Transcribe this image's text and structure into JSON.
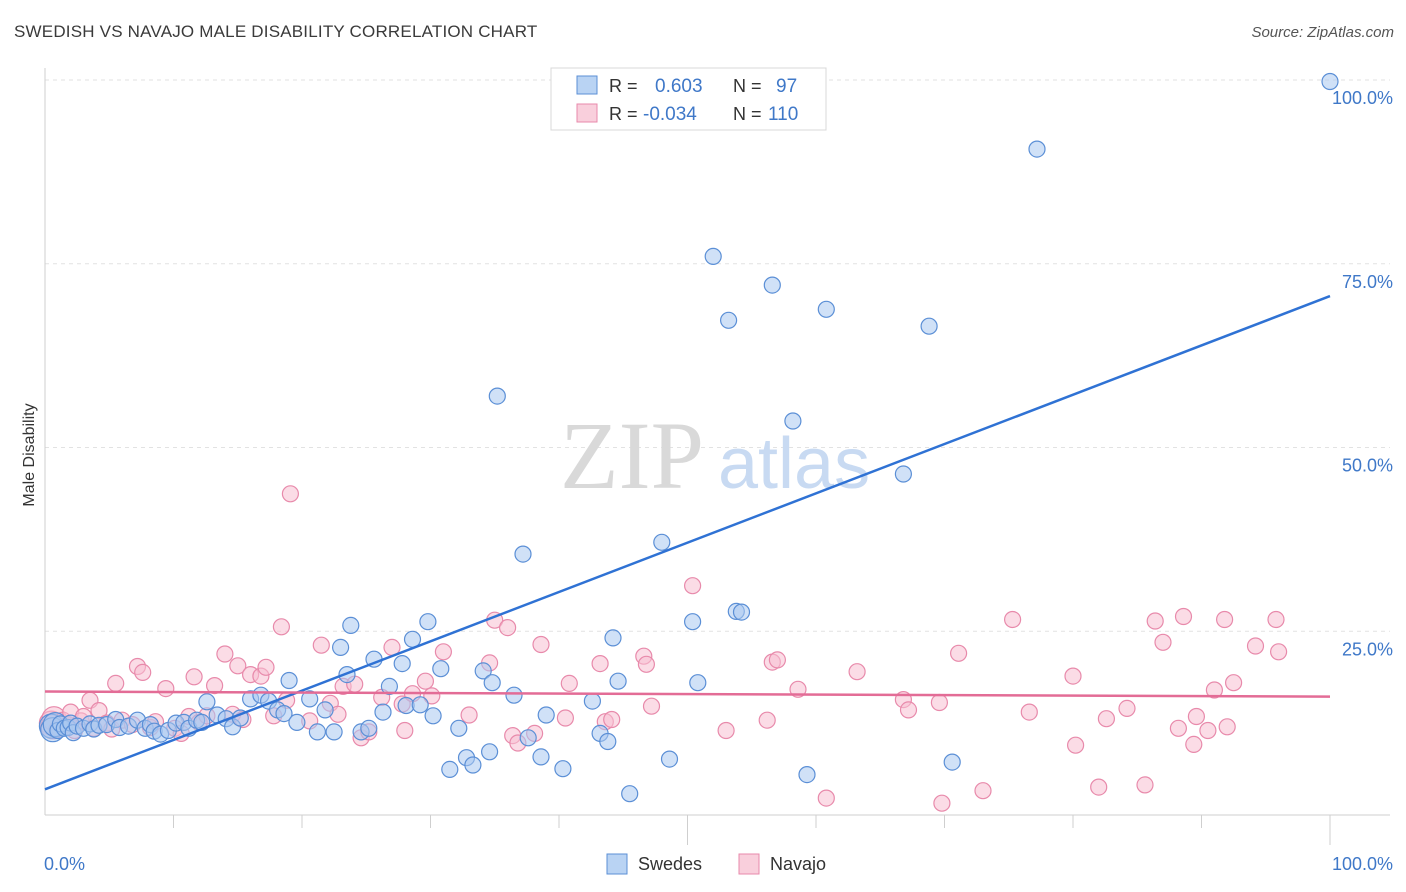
{
  "header": {
    "title": "SWEDISH VS NAVAJO MALE DISABILITY CORRELATION CHART",
    "source": "Source: ZipAtlas.com"
  },
  "watermark": {
    "zip": "ZIP",
    "atlas": "atlas"
  },
  "legend_stats": [
    {
      "r_label": "R =",
      "r_value": "0.603",
      "n_label": "N =",
      "n_value": "97"
    },
    {
      "r_label": "R =",
      "r_value": "-0.034",
      "n_label": "N =",
      "n_value": "110"
    }
  ],
  "colors": {
    "swedes_fill": "#a9c8f0",
    "swedes_stroke": "#5b8fd6",
    "swedes_line": "#2f72d4",
    "navajo_fill": "#f7bfd1",
    "navajo_stroke": "#e88aab",
    "navajo_line": "#e36c96",
    "value_text": "#3f78c8"
  },
  "chart_data": {
    "type": "scatter",
    "title": "SWEDISH VS NAVAJO MALE DISABILITY CORRELATION CHART",
    "xlabel": "",
    "ylabel": "Male Disability",
    "xlim": [
      0,
      100
    ],
    "ylim": [
      0,
      100
    ],
    "x_tick_labels": [
      "0.0%",
      "100.0%"
    ],
    "y_tick_labels": [
      "25.0%",
      "50.0%",
      "75.0%",
      "100.0%"
    ],
    "y_ticks": [
      25,
      50,
      75,
      100
    ],
    "grid": true,
    "legend_position": "bottom-center",
    "series": [
      {
        "name": "Swedes",
        "r": 0.603,
        "n": 97,
        "trend": {
          "x": [
            0,
            100
          ],
          "y": [
            3.5,
            70.6
          ]
        },
        "points": [
          [
            0.5,
            12.1
          ],
          [
            0.6,
            11.6
          ],
          [
            0.8,
            12.3
          ],
          [
            1.0,
            11.5
          ],
          [
            1.2,
            12.4
          ],
          [
            1.5,
            11.8
          ],
          [
            1.8,
            11.9
          ],
          [
            2.0,
            12.5
          ],
          [
            2.2,
            11.2
          ],
          [
            2.5,
            12.1
          ],
          [
            3.0,
            11.8
          ],
          [
            3.5,
            12.4
          ],
          [
            3.8,
            11.7
          ],
          [
            4.2,
            12.2
          ],
          [
            4.8,
            12.3
          ],
          [
            5.5,
            13.0
          ],
          [
            5.8,
            11.9
          ],
          [
            6.5,
            12.1
          ],
          [
            7.2,
            12.9
          ],
          [
            7.8,
            11.8
          ],
          [
            8.2,
            12.3
          ],
          [
            8.5,
            11.4
          ],
          [
            9.0,
            11.0
          ],
          [
            9.6,
            11.5
          ],
          [
            10.2,
            12.5
          ],
          [
            10.8,
            12.6
          ],
          [
            11.2,
            11.8
          ],
          [
            11.8,
            12.9
          ],
          [
            12.2,
            12.6
          ],
          [
            12.6,
            15.4
          ],
          [
            13.4,
            13.6
          ],
          [
            14.1,
            13.1
          ],
          [
            14.6,
            12.0
          ],
          [
            15.2,
            13.2
          ],
          [
            16.0,
            15.8
          ],
          [
            16.8,
            16.3
          ],
          [
            17.4,
            15.5
          ],
          [
            18.1,
            14.3
          ],
          [
            18.6,
            13.8
          ],
          [
            19.0,
            18.3
          ],
          [
            19.6,
            12.6
          ],
          [
            20.6,
            15.8
          ],
          [
            21.2,
            11.3
          ],
          [
            21.8,
            14.3
          ],
          [
            22.5,
            11.3
          ],
          [
            23.0,
            22.8
          ],
          [
            23.5,
            19.1
          ],
          [
            23.8,
            25.8
          ],
          [
            24.6,
            11.3
          ],
          [
            25.2,
            11.8
          ],
          [
            25.6,
            21.2
          ],
          [
            26.3,
            14.0
          ],
          [
            26.8,
            17.5
          ],
          [
            27.8,
            20.6
          ],
          [
            28.1,
            14.9
          ],
          [
            28.6,
            23.9
          ],
          [
            29.2,
            15.0
          ],
          [
            29.8,
            26.3
          ],
          [
            30.2,
            13.5
          ],
          [
            30.8,
            19.9
          ],
          [
            31.5,
            6.2
          ],
          [
            32.2,
            11.8
          ],
          [
            32.8,
            7.8
          ],
          [
            33.3,
            6.8
          ],
          [
            34.1,
            19.6
          ],
          [
            34.6,
            8.6
          ],
          [
            34.8,
            18.0
          ],
          [
            35.2,
            57.0
          ],
          [
            36.5,
            16.3
          ],
          [
            37.2,
            35.5
          ],
          [
            37.6,
            10.5
          ],
          [
            38.6,
            7.9
          ],
          [
            39.0,
            13.6
          ],
          [
            40.3,
            6.3
          ],
          [
            42.6,
            15.5
          ],
          [
            43.2,
            11.1
          ],
          [
            43.8,
            10.0
          ],
          [
            44.2,
            24.1
          ],
          [
            44.6,
            18.2
          ],
          [
            45.5,
            2.9
          ],
          [
            48.0,
            37.1
          ],
          [
            48.6,
            7.6
          ],
          [
            50.4,
            26.3
          ],
          [
            50.8,
            18.0
          ],
          [
            52.0,
            76.0
          ],
          [
            53.2,
            67.3
          ],
          [
            53.8,
            27.7
          ],
          [
            54.2,
            27.6
          ],
          [
            56.6,
            72.1
          ],
          [
            58.2,
            53.6
          ],
          [
            59.3,
            5.5
          ],
          [
            60.8,
            68.8
          ],
          [
            66.8,
            46.4
          ],
          [
            68.8,
            66.5
          ],
          [
            70.6,
            7.2
          ],
          [
            77.2,
            90.6
          ],
          [
            100.0,
            99.8
          ]
        ]
      },
      {
        "name": "Navajo",
        "r": -0.034,
        "n": 110,
        "trend": {
          "x": [
            0,
            100
          ],
          "y": [
            16.8,
            16.1
          ]
        },
        "points": [
          [
            0.5,
            12.5
          ],
          [
            0.6,
            12.0
          ],
          [
            0.7,
            13.1
          ],
          [
            0.9,
            11.6
          ],
          [
            1.1,
            11.8
          ],
          [
            1.4,
            12.9
          ],
          [
            1.8,
            12.3
          ],
          [
            2.0,
            14.0
          ],
          [
            2.3,
            11.5
          ],
          [
            2.8,
            12.8
          ],
          [
            3.0,
            13.4
          ],
          [
            3.5,
            15.6
          ],
          [
            3.8,
            11.8
          ],
          [
            4.2,
            14.2
          ],
          [
            4.8,
            12.5
          ],
          [
            5.2,
            11.7
          ],
          [
            5.5,
            17.9
          ],
          [
            6.0,
            12.9
          ],
          [
            6.8,
            12.3
          ],
          [
            7.2,
            20.2
          ],
          [
            7.6,
            19.4
          ],
          [
            8.2,
            11.9
          ],
          [
            8.6,
            12.7
          ],
          [
            9.4,
            17.2
          ],
          [
            10.1,
            11.8
          ],
          [
            10.6,
            11.1
          ],
          [
            11.2,
            13.4
          ],
          [
            11.6,
            18.8
          ],
          [
            12.0,
            12.6
          ],
          [
            12.6,
            13.5
          ],
          [
            13.2,
            17.6
          ],
          [
            14.0,
            21.9
          ],
          [
            14.6,
            13.7
          ],
          [
            15.0,
            20.3
          ],
          [
            15.4,
            13.0
          ],
          [
            16.0,
            19.1
          ],
          [
            16.8,
            18.9
          ],
          [
            17.2,
            20.1
          ],
          [
            17.8,
            13.5
          ],
          [
            18.4,
            25.6
          ],
          [
            18.8,
            15.6
          ],
          [
            19.1,
            43.7
          ],
          [
            20.6,
            12.8
          ],
          [
            21.5,
            23.1
          ],
          [
            22.2,
            15.2
          ],
          [
            22.8,
            13.7
          ],
          [
            23.2,
            17.5
          ],
          [
            24.1,
            17.8
          ],
          [
            24.6,
            10.5
          ],
          [
            25.2,
            11.3
          ],
          [
            26.2,
            16.0
          ],
          [
            27.0,
            22.8
          ],
          [
            27.8,
            15.1
          ],
          [
            28.0,
            11.5
          ],
          [
            28.6,
            16.5
          ],
          [
            29.6,
            18.2
          ],
          [
            30.1,
            16.2
          ],
          [
            31.0,
            22.2
          ],
          [
            33.0,
            13.6
          ],
          [
            34.6,
            20.7
          ],
          [
            35.0,
            26.5
          ],
          [
            36.0,
            25.5
          ],
          [
            36.4,
            10.8
          ],
          [
            36.8,
            9.8
          ],
          [
            38.1,
            11.1
          ],
          [
            38.6,
            23.2
          ],
          [
            40.5,
            13.2
          ],
          [
            40.8,
            17.9
          ],
          [
            43.2,
            20.6
          ],
          [
            43.6,
            12.7
          ],
          [
            44.1,
            13.0
          ],
          [
            46.6,
            21.6
          ],
          [
            46.8,
            20.5
          ],
          [
            47.2,
            14.8
          ],
          [
            50.4,
            31.2
          ],
          [
            53.0,
            11.5
          ],
          [
            56.2,
            12.9
          ],
          [
            56.6,
            20.8
          ],
          [
            57.0,
            21.1
          ],
          [
            58.6,
            17.1
          ],
          [
            60.8,
            2.3
          ],
          [
            63.2,
            19.5
          ],
          [
            66.8,
            15.7
          ],
          [
            67.2,
            14.3
          ],
          [
            69.6,
            15.3
          ],
          [
            69.8,
            1.6
          ],
          [
            71.1,
            22.0
          ],
          [
            73.0,
            3.3
          ],
          [
            75.3,
            26.6
          ],
          [
            76.6,
            14.0
          ],
          [
            80.0,
            18.9
          ],
          [
            80.2,
            9.5
          ],
          [
            82.0,
            3.8
          ],
          [
            82.6,
            13.1
          ],
          [
            84.2,
            14.5
          ],
          [
            85.6,
            4.1
          ],
          [
            86.4,
            26.4
          ],
          [
            87.0,
            23.5
          ],
          [
            88.2,
            11.8
          ],
          [
            88.6,
            27.0
          ],
          [
            89.4,
            9.6
          ],
          [
            89.6,
            13.4
          ],
          [
            90.5,
            11.5
          ],
          [
            91.0,
            17.0
          ],
          [
            91.8,
            26.6
          ],
          [
            92.0,
            12.0
          ],
          [
            92.5,
            18.0
          ],
          [
            94.2,
            23.0
          ],
          [
            95.8,
            26.6
          ],
          [
            96.0,
            22.2
          ]
        ]
      }
    ]
  }
}
